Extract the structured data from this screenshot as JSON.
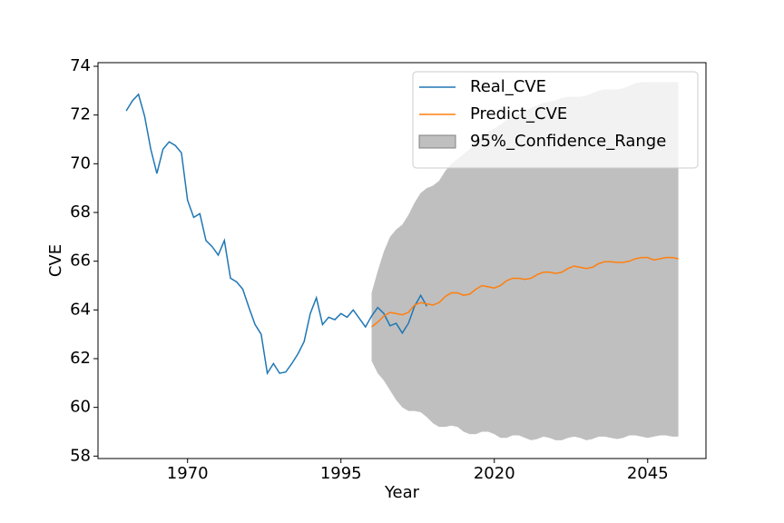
{
  "chart_data": {
    "type": "line",
    "x_label": "Year",
    "y_label": "CVE",
    "xlim": [
      1955.4,
      2054.5
    ],
    "ylim": [
      57.9,
      74.15
    ],
    "xticks": [
      1970,
      1995,
      2020,
      2045
    ],
    "yticks": [
      58,
      60,
      62,
      64,
      66,
      68,
      70,
      72,
      74
    ],
    "legend": "upper right",
    "series": [
      {
        "name": "Real_CVE",
        "color": "#1f77b4",
        "x": [
          1960,
          1961,
          1962,
          1963,
          1964,
          1965,
          1966,
          1967,
          1968,
          1969,
          1970,
          1971,
          1972,
          1973,
          1974,
          1975,
          1976,
          1977,
          1978,
          1979,
          1980,
          1981,
          1982,
          1983,
          1984,
          1985,
          1986,
          1987,
          1988,
          1989,
          1990,
          1991,
          1992,
          1993,
          1994,
          1995,
          1996,
          1997,
          1998,
          1999,
          2000,
          2001,
          2002,
          2003,
          2004,
          2005,
          2006,
          2007,
          2008,
          2009
        ],
        "values": [
          72.17,
          72.58,
          72.85,
          71.95,
          70.6,
          69.6,
          70.6,
          70.9,
          70.75,
          70.45,
          68.5,
          67.8,
          67.95,
          66.85,
          66.6,
          66.25,
          66.85,
          65.3,
          65.15,
          64.85,
          64.1,
          63.4,
          63.0,
          61.4,
          61.8,
          61.4,
          61.45,
          61.8,
          62.2,
          62.7,
          63.85,
          64.5,
          63.4,
          63.7,
          63.6,
          63.85,
          63.7,
          64.0,
          63.65,
          63.3,
          63.75,
          64.1,
          63.85,
          63.35,
          63.45,
          63.05,
          63.45,
          64.15,
          64.6,
          64.15
        ]
      },
      {
        "name": "Predict_CVE",
        "color": "#ff7f0e",
        "x": [
          2000,
          2001,
          2002,
          2003,
          2004,
          2005,
          2006,
          2007,
          2008,
          2009,
          2010,
          2011,
          2012,
          2013,
          2014,
          2015,
          2016,
          2017,
          2018,
          2019,
          2020,
          2021,
          2022,
          2023,
          2024,
          2025,
          2026,
          2027,
          2028,
          2029,
          2030,
          2031,
          2032,
          2033,
          2034,
          2035,
          2036,
          2037,
          2038,
          2039,
          2040,
          2041,
          2042,
          2043,
          2044,
          2045,
          2046,
          2047,
          2048,
          2049,
          2050
        ],
        "values": [
          63.3,
          63.5,
          63.75,
          63.9,
          63.85,
          63.8,
          63.9,
          64.2,
          64.3,
          64.25,
          64.2,
          64.3,
          64.55,
          64.7,
          64.7,
          64.6,
          64.65,
          64.85,
          65.0,
          64.95,
          64.9,
          65.0,
          65.2,
          65.3,
          65.3,
          65.25,
          65.3,
          65.45,
          65.55,
          65.55,
          65.5,
          65.55,
          65.7,
          65.8,
          65.75,
          65.7,
          65.75,
          65.9,
          65.98,
          65.98,
          65.95,
          65.95,
          66.0,
          66.1,
          66.15,
          66.15,
          66.05,
          66.1,
          66.15,
          66.15,
          66.1
        ]
      }
    ],
    "band": {
      "name": "95%_Confidence_Range",
      "color": "#808080",
      "x": [
        2000,
        2001,
        2002,
        2003,
        2004,
        2005,
        2006,
        2007,
        2008,
        2009,
        2010,
        2011,
        2012,
        2013,
        2014,
        2015,
        2016,
        2017,
        2018,
        2019,
        2020,
        2021,
        2022,
        2023,
        2024,
        2025,
        2026,
        2027,
        2028,
        2029,
        2030,
        2031,
        2032,
        2033,
        2034,
        2035,
        2036,
        2037,
        2038,
        2039,
        2040,
        2041,
        2042,
        2043,
        2044,
        2045,
        2046,
        2047,
        2048,
        2049,
        2050
      ],
      "lower": [
        61.9,
        61.4,
        61.1,
        60.7,
        60.3,
        60.0,
        59.85,
        59.85,
        59.8,
        59.6,
        59.35,
        59.2,
        59.2,
        59.25,
        59.2,
        59.0,
        58.9,
        58.9,
        59.0,
        59.0,
        58.9,
        58.75,
        58.75,
        58.85,
        58.85,
        58.75,
        58.65,
        58.7,
        58.8,
        58.75,
        58.65,
        58.65,
        58.75,
        58.8,
        58.75,
        58.65,
        58.7,
        58.8,
        58.8,
        58.75,
        58.7,
        58.75,
        58.85,
        58.85,
        58.8,
        58.75,
        58.8,
        58.85,
        58.85,
        58.8,
        58.8
      ],
      "upper": [
        64.7,
        65.6,
        66.4,
        67.0,
        67.3,
        67.5,
        67.9,
        68.4,
        68.8,
        69.0,
        69.1,
        69.3,
        69.7,
        70.0,
        70.2,
        70.4,
        70.6,
        70.9,
        71.1,
        71.3,
        71.45,
        71.6,
        71.8,
        71.95,
        72.05,
        72.15,
        72.3,
        72.4,
        72.5,
        72.55,
        72.6,
        72.7,
        72.75,
        72.75,
        72.75,
        72.8,
        72.9,
        73.0,
        73.05,
        73.05,
        73.05,
        73.1,
        73.2,
        73.3,
        73.35,
        73.35,
        73.35,
        73.35,
        73.35,
        73.35,
        73.35
      ]
    }
  }
}
